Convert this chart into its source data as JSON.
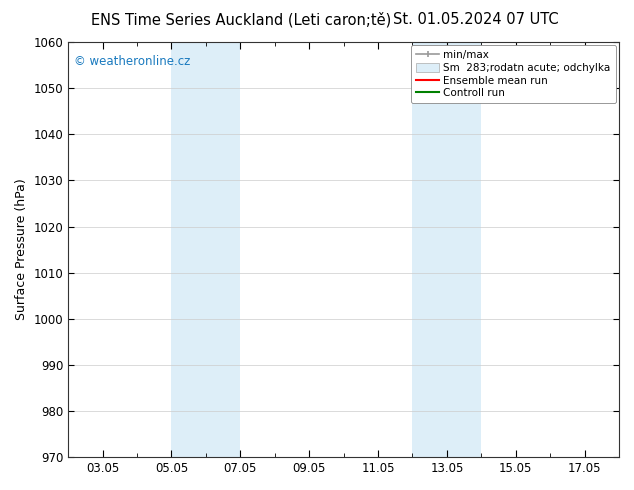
{
  "title_left": "ENS Time Series Auckland (Leti caron;tě)",
  "title_right": "St. 01.05.2024 07 UTC",
  "ylabel": "Surface Pressure (hPa)",
  "ylim": [
    970,
    1060
  ],
  "yticks": [
    970,
    980,
    990,
    1000,
    1010,
    1020,
    1030,
    1040,
    1050,
    1060
  ],
  "xtick_labels": [
    "03.05",
    "05.05",
    "07.05",
    "09.05",
    "11.05",
    "13.05",
    "15.05",
    "17.05"
  ],
  "xtick_positions": [
    2,
    4,
    6,
    8,
    10,
    12,
    14,
    16
  ],
  "xlim": [
    1,
    17
  ],
  "shaded_regions": [
    {
      "xstart": 4.0,
      "xend": 6.0,
      "color": "#ddeef8"
    },
    {
      "xstart": 11.0,
      "xend": 13.0,
      "color": "#ddeef8"
    }
  ],
  "watermark_text": "© weatheronline.cz",
  "watermark_color": "#1a7abf",
  "legend_entries": [
    {
      "label": "min/max"
    },
    {
      "label": "Sm  283;rodatn acute; odchylka"
    },
    {
      "label": "Ensemble mean run",
      "color": "red"
    },
    {
      "label": "Controll run",
      "color": "green"
    }
  ],
  "bg_color": "#ffffff",
  "grid_color": "#cccccc",
  "title_fontsize": 10.5,
  "tick_fontsize": 8.5,
  "ylabel_fontsize": 9
}
